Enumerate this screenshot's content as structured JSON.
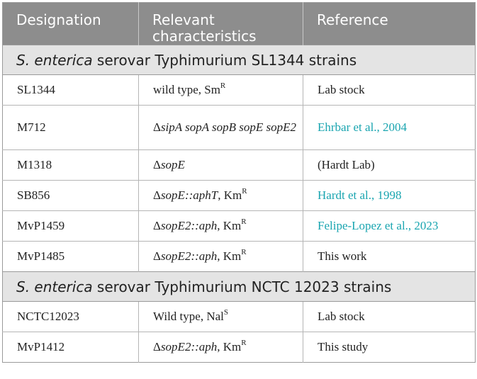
{
  "headers": {
    "designation": "Designation",
    "relevant_line1": "Relevant",
    "relevant_line2": "characteristics",
    "reference": "Reference"
  },
  "sections": [
    {
      "title_italic": "S. enterica",
      "title_rest": " serovar Typhimurium SL1344 strains",
      "rows": [
        {
          "designation": "SL1344",
          "char_pre": "wild type, Sm",
          "char_sup": "R",
          "reference": "Lab stock",
          "ref_link": false
        },
        {
          "designation": "M712",
          "char_delta": "Δ",
          "char_it": "sipA sopA sopB sopE sopE2",
          "reference": "Ehrbar et al., 2004",
          "ref_link": true
        },
        {
          "designation": "M1318",
          "char_delta": "Δ",
          "char_it": "sopE",
          "reference": "(Hardt Lab)",
          "ref_link": false
        },
        {
          "designation": "SB856",
          "char_delta": "Δ",
          "char_it": "sopE::aphT",
          "char_post": ", Km",
          "char_sup": "R",
          "reference": "Hardt et al., 1998",
          "ref_link": true
        },
        {
          "designation": "MvP1459",
          "char_delta": "Δ",
          "char_it": "sopE2::aph",
          "char_post": ", Km",
          "char_sup": "R",
          "reference": "Felipe-Lopez et al., 2023",
          "ref_link": true
        },
        {
          "designation": "MvP1485",
          "char_delta": "Δ",
          "char_it": "sopE2::aph",
          "char_post": ", Km",
          "char_sup": "R",
          "reference": "This work",
          "ref_link": false
        }
      ]
    },
    {
      "title_italic": "S. enterica",
      "title_rest": " serovar Typhimurium NCTC 12023 strains",
      "rows": [
        {
          "designation": "NCTC12023",
          "char_pre": "Wild type, Nal",
          "char_sup": "S",
          "reference": "Lab stock",
          "ref_link": false
        },
        {
          "designation": "MvP1412",
          "char_delta": "Δ",
          "char_it": "sopE2::aph",
          "char_post": ", Km",
          "char_sup": "R",
          "reference": "This study",
          "ref_link": false
        }
      ]
    }
  ],
  "colors": {
    "header_bg": "#8d8d8d",
    "section_bg": "#e4e4e4",
    "link": "#1aa5b0"
  }
}
